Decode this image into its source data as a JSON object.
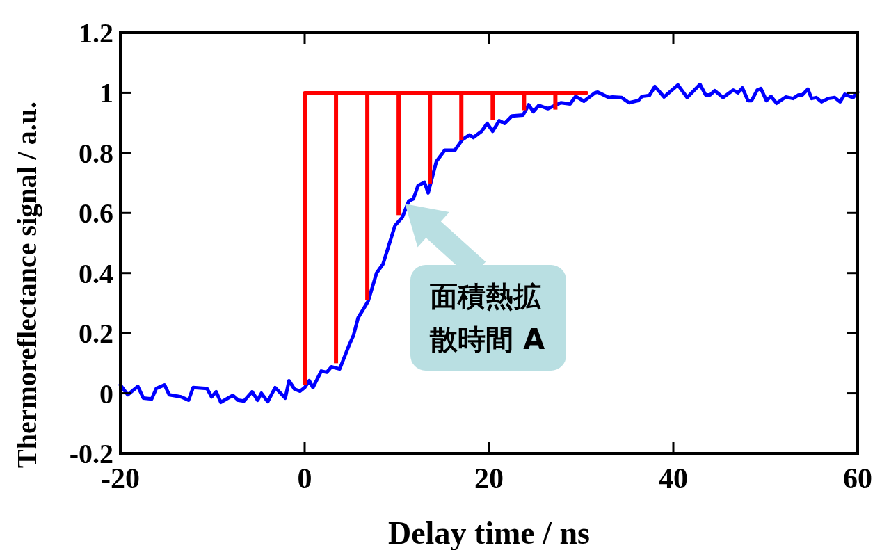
{
  "chart_data": {
    "type": "line",
    "xlabel": "Delay time / ns",
    "ylabel": "Thermoreflectance signal / a.u.",
    "xlim": [
      -20,
      60
    ],
    "ylim": [
      -0.2,
      1.2
    ],
    "xticks": [
      -20,
      0,
      20,
      40,
      60
    ],
    "yticks": [
      -0.2,
      0,
      0.2,
      0.4,
      0.6,
      0.8,
      1,
      1.2
    ],
    "grid": false,
    "marker": "none",
    "line_style": "solid",
    "annotations": [
      {
        "text": "面積熱拡散時間 A",
        "x": 10.9,
        "y": 0.63
      }
    ],
    "series": [
      {
        "color": "#0000ff",
        "x": [
          -20,
          -19.2,
          -18.1,
          -17.5,
          -16.6,
          -16.1,
          -15.2,
          -14.7,
          -13.4,
          -12.6,
          -12.1,
          -10.6,
          -10.1,
          -9.6,
          -9.1,
          -7.8,
          -7.2,
          -6.6,
          -5.7,
          -5.1,
          -4.7,
          -4.0,
          -3.2,
          -2.1,
          -1.7,
          -1.1,
          -0.5,
          0,
          0.5,
          0.9,
          1.8,
          2.4,
          2.9,
          3.8,
          4.8,
          5.3,
          5.8,
          6.9,
          7.8,
          8.5,
          9.8,
          10.6,
          11.3,
          11.8,
          12.3,
          13.0,
          13.4,
          14.3,
          15.2,
          16.3,
          17.1,
          17.9,
          18.3,
          19.2,
          19.8,
          20.4,
          21.1,
          21.7,
          22.5,
          23.7,
          24.3,
          24.8,
          25.4,
          26.4,
          27.8,
          28.8,
          29.4,
          30.3,
          31.5,
          31.8,
          33.0,
          33.4,
          34.4,
          35.2,
          36.2,
          36.6,
          37.4,
          38.0,
          39.0,
          40.5,
          41.5,
          42.9,
          43.5,
          44.0,
          44.5,
          45.4,
          46.5,
          47.0,
          47.5,
          48.1,
          48.5,
          49.1,
          49.5,
          50.1,
          50.6,
          51.2,
          52.2,
          53.0,
          53.6,
          54.0,
          54.6,
          55.0,
          55.5,
          56.1,
          56.8,
          57.5,
          58.1,
          58.6,
          59.5,
          60
        ],
        "values": [
          0.028,
          -0.005,
          0.023,
          -0.016,
          -0.019,
          0.016,
          0.028,
          -0.005,
          -0.012,
          -0.023,
          0.019,
          0.016,
          -0.012,
          0.005,
          -0.03,
          -0.007,
          -0.023,
          -0.026,
          0.005,
          -0.023,
          0,
          -0.028,
          0.019,
          -0.016,
          0.042,
          0.014,
          0.007,
          0.019,
          0.042,
          0.019,
          0.074,
          0.07,
          0.088,
          0.081,
          0.158,
          0.193,
          0.251,
          0.307,
          0.4,
          0.43,
          0.558,
          0.586,
          0.64,
          0.647,
          0.691,
          0.702,
          0.667,
          0.772,
          0.809,
          0.809,
          0.844,
          0.86,
          0.851,
          0.872,
          0.898,
          0.872,
          0.907,
          0.898,
          0.923,
          0.926,
          0.96,
          0.937,
          0.958,
          0.947,
          0.967,
          0.963,
          0.988,
          0.972,
          1.0,
          1.002,
          0.984,
          0.986,
          0.984,
          0.967,
          0.974,
          0.988,
          0.991,
          1.021,
          0.986,
          1.026,
          0.984,
          1.028,
          0.993,
          0.993,
          1.007,
          0.984,
          1.009,
          1.0,
          1.016,
          0.974,
          0.974,
          1.009,
          1.014,
          0.974,
          0.988,
          0.965,
          0.986,
          0.981,
          0.993,
          0.993,
          1.012,
          0.981,
          0.984,
          0.97,
          0.981,
          0.984,
          0.97,
          0.995,
          0.984,
          1.002
        ]
      },
      {
        "type": "bar",
        "color": "#ff0000",
        "x": [
          0,
          3.4,
          6.8,
          10.2,
          13.6,
          17,
          20.4,
          23.8,
          27.2
        ],
        "base": [
          0.028,
          0.1,
          0.31,
          0.593,
          0.698,
          0.842,
          0.909,
          0.942,
          0.944
        ],
        "values": [
          0.972,
          0.9,
          0.69,
          0.407,
          0.302,
          0.158,
          0.091,
          0.058,
          0.056
        ]
      },
      {
        "color": "#ff0000",
        "x": [
          0,
          30.6
        ],
        "values": [
          1,
          1
        ]
      }
    ]
  }
}
